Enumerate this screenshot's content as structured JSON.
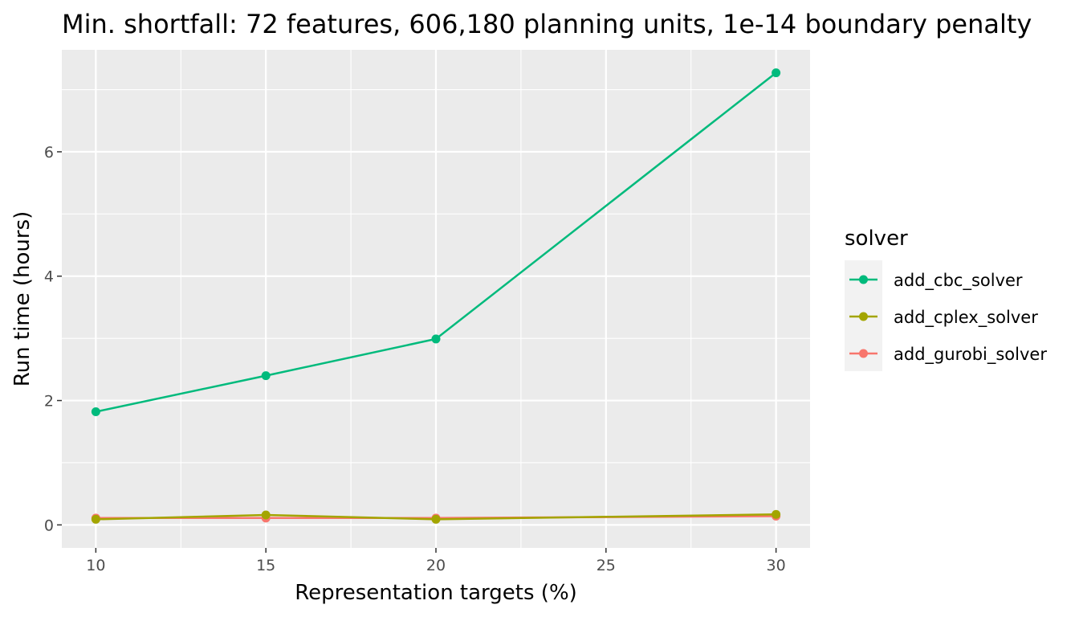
{
  "chart_data": {
    "type": "line",
    "title": "Min. shortfall: 72 features, 606,180 planning units, 1e-14 boundary penalty",
    "xlabel": "Representation targets (%)",
    "ylabel": "Run time (hours)",
    "x": [
      10,
      15,
      20,
      30
    ],
    "xlim": [
      9,
      31
    ],
    "ylim": [
      -0.37,
      7.64
    ],
    "x_ticks": [
      10,
      15,
      20,
      25,
      30
    ],
    "y_ticks": [
      0,
      2,
      4,
      6
    ],
    "grid": true,
    "legend": {
      "title": "solver",
      "position": "right"
    },
    "series": [
      {
        "name": "add_cbc_solver",
        "color": "#00BA7C",
        "values": [
          1.82,
          2.4,
          2.99,
          7.27
        ]
      },
      {
        "name": "add_cplex_solver",
        "color": "#A3A500",
        "values": [
          0.09,
          0.16,
          0.09,
          0.17
        ]
      },
      {
        "name": "add_gurobi_solver",
        "color": "#F8766D",
        "values": [
          0.11,
          0.11,
          0.11,
          0.14
        ]
      }
    ]
  }
}
